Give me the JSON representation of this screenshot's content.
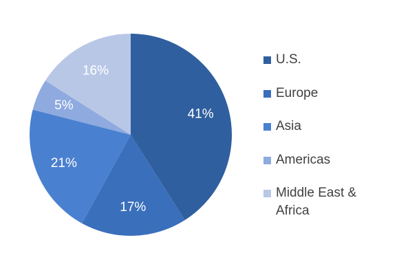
{
  "chart_data": {
    "type": "pie",
    "categories": [
      "U.S.",
      "Europe",
      "Asia",
      "Americas",
      "Middle East & Africa"
    ],
    "values": [
      41,
      17,
      21,
      5,
      16
    ],
    "value_labels": [
      "41%",
      "17%",
      "21%",
      "5%",
      "16%"
    ],
    "colors": [
      "#2f5f9e",
      "#3a6fbb",
      "#4a80d0",
      "#8eaadf",
      "#b9c7e7"
    ],
    "legend": "right"
  }
}
